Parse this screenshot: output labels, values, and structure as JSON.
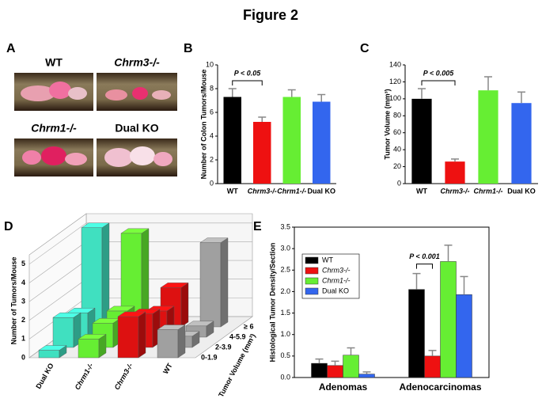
{
  "title": "Figure 2",
  "photo_panel": {
    "panel": "A",
    "labels": [
      "WT",
      "Chrm3-/-",
      "Chrm1-/-",
      "Dual KO"
    ]
  },
  "chart_data": [
    {
      "type": "bar",
      "panel": "B",
      "ylabel": "Number of Colon Tumors/Mouse",
      "categories": [
        "WT",
        "Chrm3-/-",
        "Chrm1-/-",
        "Dual KO"
      ],
      "values": [
        7.3,
        5.2,
        7.3,
        6.9
      ],
      "errors": [
        0.7,
        0.4,
        0.6,
        0.6
      ],
      "colors": [
        "#000000",
        "#ee1111",
        "#66ee33",
        "#3366ee"
      ],
      "ylim": [
        0,
        10
      ],
      "yticks": [
        0,
        2,
        4,
        6,
        8,
        10
      ],
      "annotation": "P < 0.05"
    },
    {
      "type": "bar",
      "panel": "C",
      "ylabel": "Tumor Volume (mm³)",
      "categories": [
        "WT",
        "Chrm3-/-",
        "Chrm1-/-",
        "Dual KO"
      ],
      "values": [
        100,
        26,
        110,
        95
      ],
      "errors": [
        12,
        3,
        16,
        13
      ],
      "colors": [
        "#000000",
        "#ee1111",
        "#66ee33",
        "#3366ee"
      ],
      "ylim": [
        0,
        140
      ],
      "yticks": [
        0,
        20,
        40,
        60,
        80,
        100,
        120,
        140
      ],
      "annotation": "P < 0.005"
    },
    {
      "type": "bar3d",
      "panel": "D",
      "ylabel": "Number of Tumors/Mouse",
      "xlabel": "Tumor Volume (mm³)",
      "categories": [
        "0-1.9",
        "2-3.9",
        "4-5.9",
        "≥ 6"
      ],
      "series": [
        {
          "name": "Dual KO",
          "color": "#40e0c0",
          "values": [
            0.4,
            1.6,
            1.3,
            5.3
          ]
        },
        {
          "name": "Chrm1-/-",
          "color": "#66ee33",
          "values": [
            1.0,
            1.3,
            1.4,
            5.0
          ]
        },
        {
          "name": "Chrm3-/-",
          "color": "#dd1111",
          "values": [
            2.2,
            1.8,
            1.4,
            2.1
          ]
        },
        {
          "name": "WT",
          "color": "#a0a0a0",
          "values": [
            1.5,
            0.6,
            0.6,
            4.5
          ]
        }
      ],
      "ylim": [
        0,
        5.5
      ],
      "yticks": [
        0,
        1,
        2,
        3,
        4,
        5
      ]
    },
    {
      "type": "grouped_bar",
      "panel": "E",
      "ylabel": "Histological Tumor Density/Section",
      "categories": [
        "Adenomas",
        "Adenocarcinomas"
      ],
      "series": [
        {
          "name": "WT",
          "color": "#000000",
          "values": [
            0.33,
            2.05
          ],
          "errors": [
            0.1,
            0.37
          ]
        },
        {
          "name": "Chrm3-/-",
          "color": "#ee1111",
          "values": [
            0.28,
            0.5
          ],
          "errors": [
            0.1,
            0.13
          ]
        },
        {
          "name": "Chrm1-/-",
          "color": "#66ee33",
          "values": [
            0.52,
            2.7
          ],
          "errors": [
            0.17,
            0.38
          ]
        },
        {
          "name": "Dual KO",
          "color": "#3366ee",
          "values": [
            0.08,
            1.93
          ],
          "errors": [
            0.05,
            0.42
          ]
        }
      ],
      "ylim": [
        0,
        3.5
      ],
      "yticks": [
        {
          "value": 0,
          "label": "0.0"
        },
        0.5,
        {
          "value": 1,
          "label": "1.0"
        },
        1.5,
        {
          "value": 2,
          "label": "2.0"
        },
        2.5,
        {
          "value": 3,
          "label": "3.0"
        },
        3.5
      ],
      "legend": "upper left",
      "annotation": "P < 0.001"
    }
  ]
}
